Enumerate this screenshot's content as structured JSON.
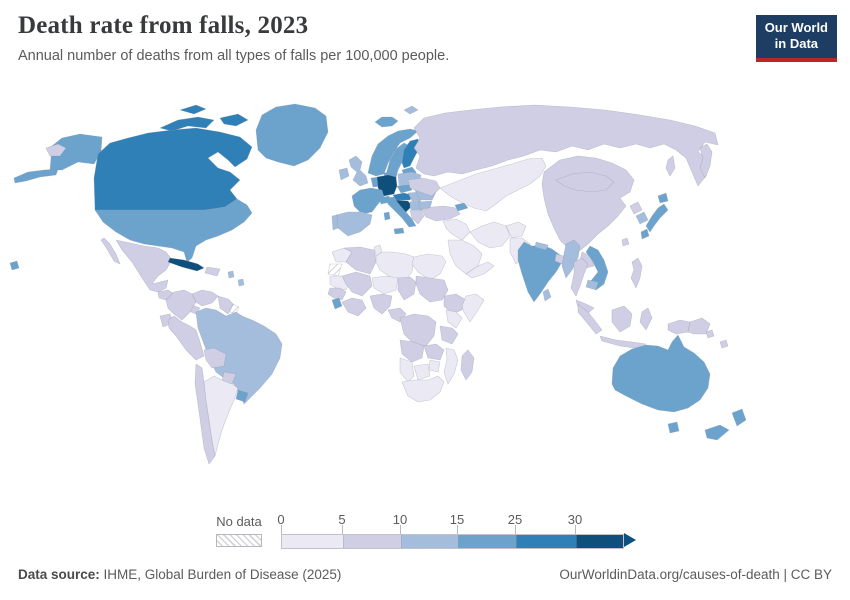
{
  "header": {
    "title": "Death rate from falls, 2023",
    "subtitle": "Annual number of deaths from all types of falls per 100,000 people."
  },
  "logo": {
    "line1": "Our World",
    "line2": "in Data",
    "bg": "#1d3d63",
    "accent": "#bc2726"
  },
  "legend": {
    "no_data_label": "No data",
    "ticks": [
      "0",
      "5",
      "10",
      "15",
      "25",
      "30"
    ],
    "bins": [
      {
        "range": "0-5",
        "color": "#ebeaf4",
        "width": 61
      },
      {
        "range": "5-10",
        "color": "#cfcee4",
        "width": 58
      },
      {
        "range": "10-15",
        "color": "#a4bddc",
        "width": 57
      },
      {
        "range": "15-25",
        "color": "#6ba3cd",
        "width": 58
      },
      {
        "range": "25-30",
        "color": "#2f80b6",
        "width": 60
      },
      {
        "range": "30+",
        "color": "#0e4f7c",
        "width": 47
      }
    ]
  },
  "footer": {
    "source_label": "Data source:",
    "source_value": " IHME, Global Burden of Disease (2025)",
    "link": "OurWorldinData.org/causes-of-death | CC BY"
  },
  "chart_data": {
    "type": "heatmap",
    "subtype": "world-choropleth",
    "title": "Death rate from falls, 2023",
    "unit": "deaths per 100,000 people",
    "year": 2023,
    "legend_thresholds": [
      0,
      5,
      10,
      15,
      25,
      30
    ],
    "regions": [
      {
        "id": "usa",
        "name": "United States",
        "bin": "15-25"
      },
      {
        "id": "canada",
        "name": "Canada",
        "bin": "25-30"
      },
      {
        "id": "greenland",
        "name": "Greenland",
        "bin": "15-25"
      },
      {
        "id": "mexico",
        "name": "Mexico",
        "bin": "5-10"
      },
      {
        "id": "centralamerica",
        "name": "Central America",
        "bin": "5-10"
      },
      {
        "id": "cuba",
        "name": "Cuba",
        "bin": "30+"
      },
      {
        "id": "hispaniola",
        "name": "Haiti & Dominican Republic",
        "bin": "5-10"
      },
      {
        "id": "antilles",
        "name": "Lesser Antilles",
        "bin": "10-15"
      },
      {
        "id": "colombia",
        "name": "Colombia",
        "bin": "5-10"
      },
      {
        "id": "venezuela",
        "name": "Venezuela",
        "bin": "5-10"
      },
      {
        "id": "guyanas",
        "name": "Guyana & Suriname",
        "bin": "5-10"
      },
      {
        "id": "frenchguiana",
        "name": "French Guiana",
        "bin": "no-data"
      },
      {
        "id": "ecuador",
        "name": "Ecuador",
        "bin": "5-10"
      },
      {
        "id": "brazil",
        "name": "Brazil",
        "bin": "10-15"
      },
      {
        "id": "peru",
        "name": "Peru",
        "bin": "5-10"
      },
      {
        "id": "bolivia",
        "name": "Bolivia",
        "bin": "5-10"
      },
      {
        "id": "paraguay",
        "name": "Paraguay",
        "bin": "5-10"
      },
      {
        "id": "chile",
        "name": "Chile",
        "bin": "5-10"
      },
      {
        "id": "argentina",
        "name": "Argentina",
        "bin": "0-5"
      },
      {
        "id": "uruguay",
        "name": "Uruguay",
        "bin": "15-25"
      },
      {
        "id": "iceland",
        "name": "Iceland",
        "bin": "15-25"
      },
      {
        "id": "norway",
        "name": "Norway",
        "bin": "15-25"
      },
      {
        "id": "sweden",
        "name": "Sweden",
        "bin": "15-25"
      },
      {
        "id": "finland",
        "name": "Finland",
        "bin": "25-30"
      },
      {
        "id": "denmark",
        "name": "Denmark",
        "bin": "15-25"
      },
      {
        "id": "baltics",
        "name": "Baltic states",
        "bin": "15-25"
      },
      {
        "id": "belarus",
        "name": "Belarus",
        "bin": "10-15"
      },
      {
        "id": "uk",
        "name": "United Kingdom",
        "bin": "10-15"
      },
      {
        "id": "ireland",
        "name": "Ireland",
        "bin": "10-15"
      },
      {
        "id": "benelux",
        "name": "Belgium & Netherlands",
        "bin": "15-25"
      },
      {
        "id": "germany",
        "name": "Germany",
        "bin": "30+"
      },
      {
        "id": "poland",
        "name": "Poland",
        "bin": "10-15"
      },
      {
        "id": "czechia",
        "name": "Czechia",
        "bin": "15-25"
      },
      {
        "id": "france",
        "name": "France",
        "bin": "15-25"
      },
      {
        "id": "switzerland",
        "name": "Switzerland",
        "bin": "15-25"
      },
      {
        "id": "austria",
        "name": "Austria",
        "bin": "25-30"
      },
      {
        "id": "hungary",
        "name": "Hungary",
        "bin": "10-15"
      },
      {
        "id": "croatia",
        "name": "Slovenia & Croatia",
        "bin": "30+"
      },
      {
        "id": "serbia",
        "name": "Serbia & Bosnia",
        "bin": "10-15"
      },
      {
        "id": "italy",
        "name": "Italy",
        "bin": "15-25"
      },
      {
        "id": "romania",
        "name": "Romania",
        "bin": "10-15"
      },
      {
        "id": "bulgaria",
        "name": "Bulgaria",
        "bin": "10-15"
      },
      {
        "id": "greece",
        "name": "Greece",
        "bin": "5-10"
      },
      {
        "id": "ukraine",
        "name": "Ukraine",
        "bin": "5-10"
      },
      {
        "id": "spain",
        "name": "Spain",
        "bin": "10-15"
      },
      {
        "id": "portugal",
        "name": "Portugal",
        "bin": "10-15"
      },
      {
        "id": "svalbard",
        "name": "Svalbard",
        "bin": "10-15"
      },
      {
        "id": "russia",
        "name": "Russia",
        "bin": "5-10"
      },
      {
        "id": "kazakhstan",
        "name": "Kazakhstan & Central Asia",
        "bin": "0-5"
      },
      {
        "id": "turkey",
        "name": "Turkey",
        "bin": "5-10"
      },
      {
        "id": "caucasus",
        "name": "Georgia & Armenia",
        "bin": "15-25"
      },
      {
        "id": "syria_iraq",
        "name": "Syria & Iraq",
        "bin": "0-5"
      },
      {
        "id": "saudiarabia",
        "name": "Saudi Arabia",
        "bin": "0-5"
      },
      {
        "id": "yemen_oman",
        "name": "Yemen & Oman",
        "bin": "0-5"
      },
      {
        "id": "iran",
        "name": "Iran",
        "bin": "0-5"
      },
      {
        "id": "afghanistan",
        "name": "Afghanistan",
        "bin": "0-5"
      },
      {
        "id": "pakistan",
        "name": "Pakistan",
        "bin": "0-5"
      },
      {
        "id": "india",
        "name": "India",
        "bin": "15-25"
      },
      {
        "id": "nepal",
        "name": "Nepal",
        "bin": "10-15"
      },
      {
        "id": "bangladesh",
        "name": "Bangladesh",
        "bin": "5-10"
      },
      {
        "id": "srilanka",
        "name": "Sri Lanka",
        "bin": "10-15"
      },
      {
        "id": "china",
        "name": "China",
        "bin": "5-10"
      },
      {
        "id": "mongolia",
        "name": "Mongolia",
        "bin": "5-10"
      },
      {
        "id": "northkorea",
        "name": "North Korea",
        "bin": "5-10"
      },
      {
        "id": "southkorea",
        "name": "South Korea",
        "bin": "10-15"
      },
      {
        "id": "japan",
        "name": "Japan",
        "bin": "15-25"
      },
      {
        "id": "taiwan",
        "name": "Taiwan",
        "bin": "5-10"
      },
      {
        "id": "myanmar",
        "name": "Myanmar",
        "bin": "10-15"
      },
      {
        "id": "thailand",
        "name": "Thailand",
        "bin": "5-10"
      },
      {
        "id": "laos",
        "name": "Laos",
        "bin": "5-10"
      },
      {
        "id": "vietnam",
        "name": "Vietnam",
        "bin": "15-25"
      },
      {
        "id": "cambodia",
        "name": "Cambodia",
        "bin": "10-15"
      },
      {
        "id": "malaysia",
        "name": "Malaysia",
        "bin": "5-10"
      },
      {
        "id": "indonesia",
        "name": "Indonesia",
        "bin": "5-10"
      },
      {
        "id": "newguinea",
        "name": "Papua New Guinea",
        "bin": "5-10"
      },
      {
        "id": "philippines",
        "name": "Philippines",
        "bin": "5-10"
      },
      {
        "id": "solomons",
        "name": "Solomon Islands",
        "bin": "5-10"
      },
      {
        "id": "morocco",
        "name": "Morocco",
        "bin": "0-5"
      },
      {
        "id": "wsahara",
        "name": "Western Sahara",
        "bin": "no-data"
      },
      {
        "id": "algeria",
        "name": "Algeria",
        "bin": "5-10"
      },
      {
        "id": "tunisia",
        "name": "Tunisia",
        "bin": "0-5"
      },
      {
        "id": "libya",
        "name": "Libya",
        "bin": "0-5"
      },
      {
        "id": "egypt",
        "name": "Egypt",
        "bin": "0-5"
      },
      {
        "id": "mauritania",
        "name": "Mauritania",
        "bin": "0-5"
      },
      {
        "id": "mali",
        "name": "Mali",
        "bin": "5-10"
      },
      {
        "id": "niger",
        "name": "Niger",
        "bin": "0-5"
      },
      {
        "id": "chad",
        "name": "Chad",
        "bin": "5-10"
      },
      {
        "id": "sudan",
        "name": "Sudan",
        "bin": "5-10"
      },
      {
        "id": "ethiopia",
        "name": "Ethiopia",
        "bin": "5-10"
      },
      {
        "id": "somalia",
        "name": "Somalia",
        "bin": "0-5"
      },
      {
        "id": "senegal",
        "name": "Senegal & Guinea",
        "bin": "5-10"
      },
      {
        "id": "sierraleone",
        "name": "Sierra Leone",
        "bin": "15-25"
      },
      {
        "id": "ghana",
        "name": "Ghana & Côte d'Ivoire",
        "bin": "5-10"
      },
      {
        "id": "nigeria",
        "name": "Nigeria",
        "bin": "5-10"
      },
      {
        "id": "cameroon",
        "name": "Cameroon & CAR",
        "bin": "5-10"
      },
      {
        "id": "drc",
        "name": "DR Congo",
        "bin": "5-10"
      },
      {
        "id": "kenya",
        "name": "Kenya & Uganda",
        "bin": "0-5"
      },
      {
        "id": "tanzania",
        "name": "Tanzania",
        "bin": "5-10"
      },
      {
        "id": "angola",
        "name": "Angola",
        "bin": "5-10"
      },
      {
        "id": "zambia",
        "name": "Zambia",
        "bin": "5-10"
      },
      {
        "id": "mozambique",
        "name": "Mozambique",
        "bin": "0-5"
      },
      {
        "id": "zimbabwe",
        "name": "Zimbabwe",
        "bin": "0-5"
      },
      {
        "id": "namibia",
        "name": "Namibia",
        "bin": "0-5"
      },
      {
        "id": "botswana",
        "name": "Botswana",
        "bin": "0-5"
      },
      {
        "id": "southafrica",
        "name": "South Africa",
        "bin": "0-5"
      },
      {
        "id": "madagascar",
        "name": "Madagascar",
        "bin": "5-10"
      },
      {
        "id": "australia",
        "name": "Australia",
        "bin": "15-25"
      },
      {
        "id": "newzealand",
        "name": "New Zealand",
        "bin": "15-25"
      }
    ]
  }
}
